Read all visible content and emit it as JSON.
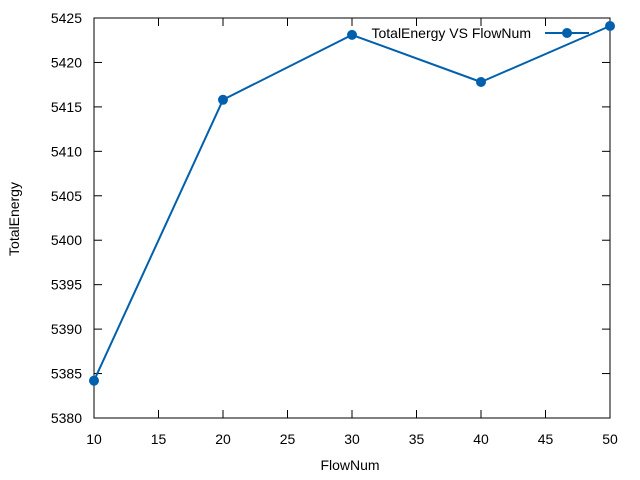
{
  "chart_data": {
    "type": "line",
    "title": "",
    "xlabel": "FlowNum",
    "ylabel": "TotalEnergy",
    "xlim": [
      10,
      50
    ],
    "ylim": [
      5380,
      5425
    ],
    "x_ticks": [
      10,
      15,
      20,
      25,
      30,
      35,
      40,
      45,
      50
    ],
    "y_ticks": [
      5380,
      5385,
      5390,
      5395,
      5400,
      5405,
      5410,
      5415,
      5420,
      5425
    ],
    "grid": false,
    "legend_position": "top-right",
    "series": [
      {
        "name": "TotalEnergy VS FlowNum",
        "color": "#0060ad",
        "marker": "circle",
        "x": [
          10,
          20,
          30,
          40,
          50
        ],
        "y": [
          5384.2,
          5415.8,
          5423.1,
          5417.8,
          5424.1
        ]
      }
    ]
  }
}
